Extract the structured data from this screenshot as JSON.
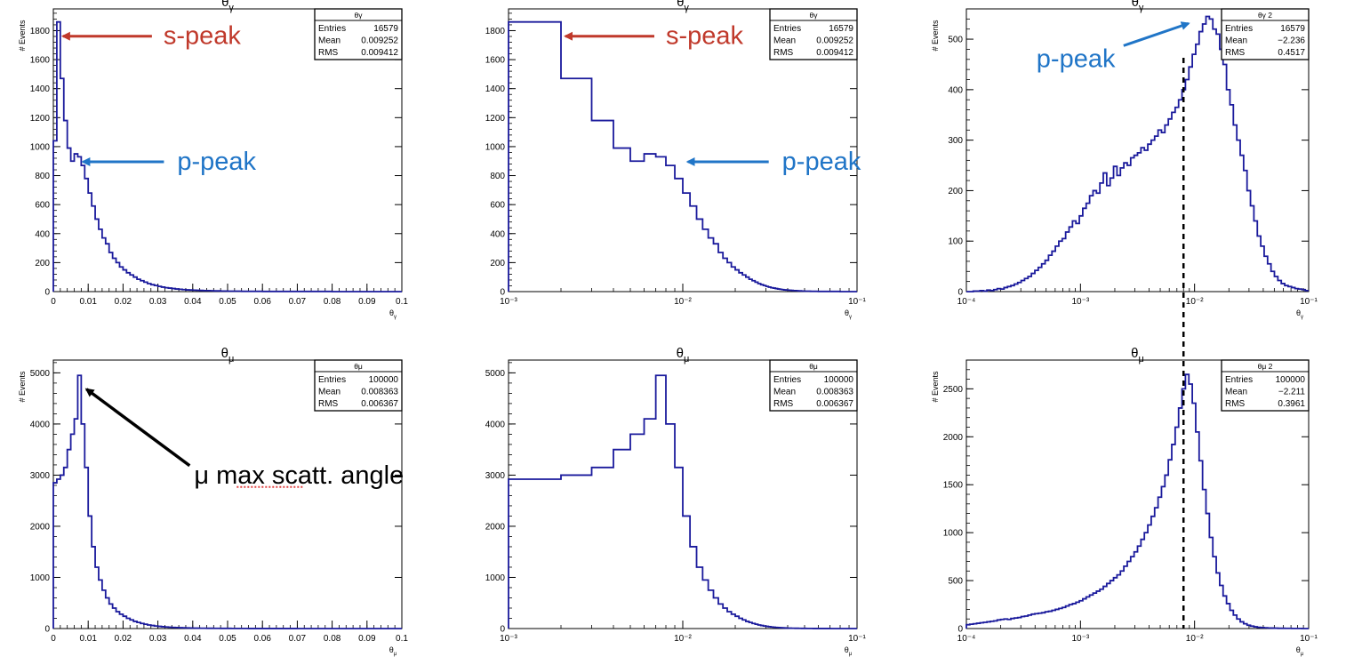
{
  "chart_data": [
    {
      "id": "p1",
      "type": "histogram",
      "title": "θγ",
      "xlabel": "θγ",
      "ylabel": "# Events",
      "xscale": "linear",
      "xlim": [
        0,
        0.1
      ],
      "ylim": [
        0,
        1950
      ],
      "xticks": [
        0,
        0.01,
        0.02,
        0.03,
        0.04,
        0.05,
        0.06,
        0.07,
        0.08,
        0.09,
        0.1
      ],
      "xticklabels": [
        "0",
        "0.01",
        "0.02",
        "0.03",
        "0.04",
        "0.05",
        "0.06",
        "0.07",
        "0.08",
        "0.09",
        "0.1"
      ],
      "yticks": [
        0,
        200,
        400,
        600,
        800,
        1000,
        1200,
        1400,
        1600,
        1800
      ],
      "yticklabels": [
        "0",
        "200",
        "400",
        "600",
        "800",
        "1000",
        "1200",
        "1400",
        "1600",
        "1800"
      ],
      "bin_edges": {
        "start": 0,
        "step": 0.001,
        "n": 100
      },
      "values": [
        1040,
        1860,
        1470,
        1180,
        990,
        900,
        950,
        930,
        870,
        780,
        680,
        590,
        500,
        430,
        370,
        330,
        270,
        230,
        200,
        170,
        150,
        130,
        115,
        100,
        85,
        75,
        65,
        55,
        48,
        42,
        36,
        31,
        27,
        24,
        21,
        18,
        16,
        14,
        12,
        11,
        10,
        9,
        8,
        7,
        7,
        6,
        5,
        5,
        4,
        4,
        3,
        3,
        3,
        3,
        2,
        2,
        2,
        2,
        2,
        2,
        1,
        1,
        1,
        1,
        1,
        1,
        1,
        1,
        1,
        1,
        1,
        1,
        1,
        1,
        1,
        1,
        1,
        1,
        1,
        1,
        0,
        0,
        0,
        0,
        0,
        0,
        0,
        0,
        0,
        0,
        0,
        0,
        0,
        0,
        0,
        0,
        0,
        0,
        0,
        0
      ],
      "stats": {
        "name": "θγ",
        "entries": "16579",
        "mean": "0.009252",
        "rms": "0.009412"
      },
      "stat_labels": [
        "Entries",
        "Mean",
        "RMS"
      ],
      "annotations": [
        {
          "text": "s-peak",
          "color": "#c0392b",
          "x": 0.0015,
          "y": 1780
        },
        {
          "text": "p-peak",
          "color": "#2075c7",
          "x": 0.0075,
          "y": 920
        }
      ]
    },
    {
      "id": "p2",
      "type": "histogram",
      "title": "θγ",
      "xlabel": "θγ",
      "ylabel": "",
      "xscale": "log",
      "xlim": [
        0.001,
        0.1
      ],
      "ylim": [
        0,
        1950
      ],
      "xticks": [
        0.001,
        0.01,
        0.1
      ],
      "xticklabels": [
        "10⁻³",
        "10⁻²",
        "10⁻¹"
      ],
      "yticks": [
        0,
        200,
        400,
        600,
        800,
        1000,
        1200,
        1400,
        1600,
        1800
      ],
      "yticklabels": [
        "0",
        "200",
        "400",
        "600",
        "800",
        "1000",
        "1200",
        "1400",
        "1600",
        "1800"
      ],
      "bin_edges": {
        "start": 0,
        "step": 0.001,
        "n": 100
      },
      "values_from": "p1",
      "stats": {
        "name": "θγ",
        "entries": "16579",
        "mean": "0.009252",
        "rms": "0.009412"
      },
      "stat_labels": [
        "Entries",
        "Mean",
        "RMS"
      ],
      "annotations": [
        {
          "text": "s-peak",
          "color": "#c0392b",
          "x": 0.002,
          "y": 1780
        },
        {
          "text": "p-peak",
          "color": "#2075c7",
          "x": 0.0102,
          "y": 920
        }
      ]
    },
    {
      "id": "p3",
      "type": "histogram",
      "title": "θγ",
      "xlabel": "θγ",
      "ylabel": "# Events",
      "xscale": "log",
      "xlim": [
        0.0001,
        0.1
      ],
      "ylim": [
        0,
        560
      ],
      "xticks": [
        0.0001,
        0.001,
        0.01,
        0.1
      ],
      "xticklabels": [
        "10⁻⁴",
        "10⁻³",
        "10⁻²",
        "10⁻¹"
      ],
      "yticks": [
        0,
        100,
        200,
        300,
        400,
        500
      ],
      "yticklabels": [
        "0",
        "100",
        "200",
        "300",
        "400",
        "500"
      ],
      "log_bins": {
        "from": 0.0001,
        "to": 0.1,
        "n": 100
      },
      "values": [
        0,
        0,
        1,
        1,
        2,
        1,
        3,
        2,
        4,
        6,
        5,
        8,
        10,
        12,
        15,
        18,
        22,
        26,
        30,
        36,
        42,
        48,
        55,
        62,
        72,
        80,
        90,
        100,
        105,
        118,
        128,
        140,
        135,
        150,
        165,
        175,
        190,
        200,
        195,
        215,
        235,
        210,
        225,
        248,
        230,
        245,
        255,
        250,
        265,
        270,
        275,
        285,
        280,
        292,
        300,
        308,
        320,
        315,
        330,
        342,
        355,
        365,
        380,
        400,
        420,
        445,
        470,
        490,
        515,
        530,
        545,
        540,
        520,
        510,
        480,
        450,
        400,
        370,
        330,
        300,
        270,
        240,
        200,
        170,
        140,
        110,
        90,
        70,
        55,
        40,
        30,
        22,
        16,
        12,
        10,
        8,
        6,
        5,
        4,
        2
      ],
      "marker_line_x": 0.008,
      "stats": {
        "name": "θγ 2",
        "entries": "16579",
        "mean": "−2.236",
        "rms": "0.4517"
      },
      "stat_labels": [
        "Entries",
        "Mean",
        "RMS"
      ],
      "annotations": [
        {
          "text": "p-peak",
          "color": "#2075c7",
          "x": 0.0095,
          "y": 540
        }
      ]
    },
    {
      "id": "p4",
      "type": "histogram",
      "title": "θμ",
      "xlabel": "θμ",
      "ylabel": "# Events",
      "xscale": "linear",
      "xlim": [
        0,
        0.1
      ],
      "ylim": [
        0,
        5250
      ],
      "xticks": [
        0,
        0.01,
        0.02,
        0.03,
        0.04,
        0.05,
        0.06,
        0.07,
        0.08,
        0.09,
        0.1
      ],
      "xticklabels": [
        "0",
        "0.01",
        "0.02",
        "0.03",
        "0.04",
        "0.05",
        "0.06",
        "0.07",
        "0.08",
        "0.09",
        "0.1"
      ],
      "yticks": [
        0,
        1000,
        2000,
        3000,
        4000,
        5000
      ],
      "yticklabels": [
        "0",
        "1000",
        "2000",
        "3000",
        "4000",
        "5000"
      ],
      "bin_edges": {
        "start": 0,
        "step": 0.001,
        "n": 100
      },
      "values": [
        2850,
        2920,
        3000,
        3150,
        3500,
        3800,
        4100,
        4950,
        4000,
        3150,
        2200,
        1600,
        1200,
        950,
        750,
        600,
        480,
        400,
        330,
        280,
        240,
        200,
        170,
        140,
        120,
        100,
        85,
        70,
        60,
        50,
        42,
        36,
        30,
        26,
        22,
        19,
        16,
        14,
        12,
        10,
        9,
        8,
        7,
        6,
        5,
        5,
        4,
        4,
        3,
        3,
        3,
        2,
        2,
        2,
        2,
        2,
        1,
        1,
        1,
        1,
        1,
        1,
        1,
        1,
        1,
        1,
        1,
        1,
        1,
        1,
        0,
        0,
        0,
        0,
        0,
        0,
        0,
        0,
        0,
        0,
        0,
        0,
        0,
        0,
        0,
        0,
        0,
        0,
        0,
        0,
        0,
        0,
        0,
        0,
        0,
        0,
        0,
        0,
        0,
        0
      ],
      "stats": {
        "name": "θμ",
        "entries": "100000",
        "mean": "0.008363",
        "rms": "0.006367"
      },
      "stat_labels": [
        "Entries",
        "Mean",
        "RMS"
      ],
      "annotations": [
        {
          "text": "μ max scatt. angle",
          "color": "#000000",
          "x": 0.0085,
          "y": 4750
        }
      ]
    },
    {
      "id": "p5",
      "type": "histogram",
      "title": "θμ",
      "xlabel": "θμ",
      "ylabel": "",
      "xscale": "log",
      "xlim": [
        0.001,
        0.1
      ],
      "ylim": [
        0,
        5250
      ],
      "xticks": [
        0.001,
        0.01,
        0.1
      ],
      "xticklabels": [
        "10⁻³",
        "10⁻²",
        "10⁻¹"
      ],
      "yticks": [
        0,
        1000,
        2000,
        3000,
        4000,
        5000
      ],
      "yticklabels": [
        "0",
        "1000",
        "2000",
        "3000",
        "4000",
        "5000"
      ],
      "bin_edges": {
        "start": 0,
        "step": 0.001,
        "n": 100
      },
      "values_from": "p4",
      "stats": {
        "name": "θμ",
        "entries": "100000",
        "mean": "0.008363",
        "rms": "0.006367"
      },
      "stat_labels": [
        "Entries",
        "Mean",
        "RMS"
      ],
      "annotations": []
    },
    {
      "id": "p6",
      "type": "histogram",
      "title": "θμ",
      "xlabel": "θμ",
      "ylabel": "# Events",
      "xscale": "log",
      "xlim": [
        0.0001,
        0.1
      ],
      "ylim": [
        0,
        2800
      ],
      "xticks": [
        0.0001,
        0.001,
        0.01,
        0.1
      ],
      "xticklabels": [
        "10⁻⁴",
        "10⁻³",
        "10⁻²",
        "10⁻¹"
      ],
      "yticks": [
        0,
        500,
        1000,
        1500,
        2000,
        2500
      ],
      "yticklabels": [
        "0",
        "500",
        "1000",
        "1500",
        "2000",
        "2500"
      ],
      "log_bins": {
        "from": 0.0001,
        "to": 0.1,
        "n": 100
      },
      "values": [
        40,
        45,
        50,
        55,
        60,
        65,
        70,
        75,
        80,
        90,
        95,
        100,
        95,
        105,
        110,
        115,
        125,
        130,
        140,
        150,
        155,
        160,
        165,
        175,
        180,
        190,
        200,
        210,
        220,
        235,
        250,
        260,
        275,
        290,
        310,
        330,
        350,
        370,
        390,
        410,
        440,
        470,
        500,
        530,
        560,
        600,
        650,
        700,
        750,
        800,
        860,
        930,
        1000,
        1080,
        1170,
        1260,
        1370,
        1480,
        1600,
        1760,
        1920,
        2100,
        2300,
        2500,
        2650,
        2550,
        2350,
        2050,
        1750,
        1450,
        1200,
        950,
        750,
        580,
        450,
        340,
        260,
        190,
        140,
        100,
        70,
        50,
        35,
        25,
        18,
        13,
        10,
        8,
        6,
        5,
        4,
        3,
        3,
        2,
        2,
        1,
        1,
        1,
        0,
        0
      ],
      "marker_line_x": 0.008,
      "stats": {
        "name": "θμ 2",
        "entries": "100000",
        "mean": "−2.211",
        "rms": "0.3961"
      },
      "stat_labels": [
        "Entries",
        "Mean",
        "RMS"
      ],
      "annotations": []
    }
  ]
}
